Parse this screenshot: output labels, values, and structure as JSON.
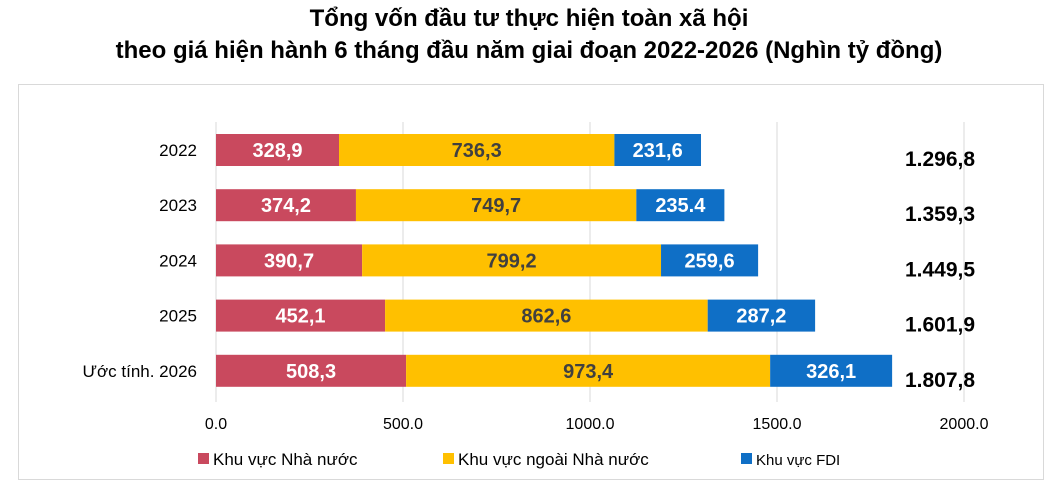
{
  "title_line1": "Tổng vốn đầu tư thực hiện toàn xã hội",
  "title_line2": "theo giá hiện hành 6 tháng đầu năm giai đoạn 2022-2026 (Nghìn tỷ đồng)",
  "chart_data": {
    "type": "bar",
    "orientation": "horizontal",
    "stacked": true,
    "categories": [
      "2022",
      "2023",
      "2024",
      "2025",
      "Ước tính. 2026"
    ],
    "series": [
      {
        "name": "Khu vực Nhà nước",
        "color": "#c9495e",
        "values": [
          328.9,
          374.2,
          390.7,
          452.1,
          508.3
        ],
        "labels": [
          "328,9",
          "374,2",
          "390,7",
          "452,1",
          "508,3"
        ]
      },
      {
        "name": "Khu vực ngoài Nhà nước",
        "color": "#ffc000",
        "values": [
          736.3,
          749.7,
          799.2,
          862.6,
          973.4
        ],
        "labels": [
          "736,3",
          "749,7",
          "799,2",
          "862,6",
          "973,4"
        ]
      },
      {
        "name": "Khu vực FDI",
        "color": "#0f6fc6",
        "values": [
          231.6,
          235.4,
          259.6,
          287.2,
          326.1
        ],
        "labels": [
          "231,6",
          "235.4",
          "259,6",
          "287,2",
          "326,1"
        ]
      }
    ],
    "totals": [
      "1.296,8",
      "1.359,3",
      "1.449,5",
      "1.601,9",
      "1.807,8"
    ],
    "xlim": [
      0,
      2000
    ],
    "xticks": [
      0,
      500,
      1000,
      1500,
      2000
    ],
    "xtick_labels": [
      "0.0",
      "500.0",
      "1000.0",
      "1500.0",
      "2000.0"
    ],
    "grid": "vertical",
    "legend_position": "bottom"
  }
}
